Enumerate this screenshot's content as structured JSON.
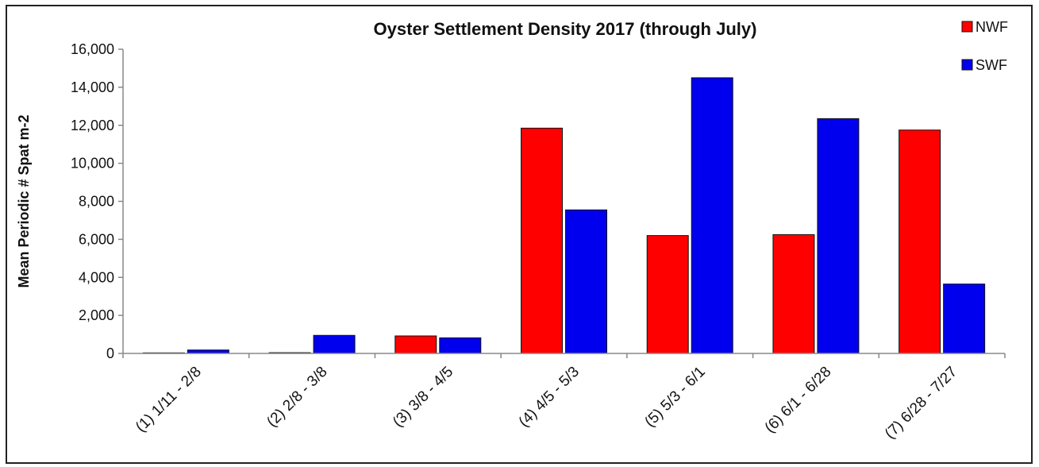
{
  "chart_data": {
    "type": "bar",
    "title": "Oyster Settlement Density 2017 (through July)",
    "xlabel": "",
    "ylabel": "Mean Periodic # Spat m-2",
    "ylim": [
      0,
      16000
    ],
    "yticks": [
      0,
      2000,
      4000,
      6000,
      8000,
      10000,
      12000,
      14000,
      16000
    ],
    "ytick_labels": [
      "0",
      "2,000",
      "4,000",
      "6,000",
      "8,000",
      "10,000",
      "12,000",
      "14,000",
      "16,000"
    ],
    "categories": [
      "(1) 1/11 - 2/8",
      "(2) 2/8 - 3/8",
      "(3) 3/8 - 4/5",
      "(4) 4/5 - 5/3",
      "(5) 5/3 - 6/1",
      "(6) 6/1 - 6/28",
      "(7) 6/28 - 7/27"
    ],
    "series": [
      {
        "name": "NWF",
        "color": "#ff0000",
        "values": [
          30,
          40,
          920,
          11850,
          6200,
          6250,
          11750
        ]
      },
      {
        "name": "SWF",
        "color": "#0000ee",
        "values": [
          180,
          950,
          820,
          7550,
          14500,
          12350,
          3650
        ]
      }
    ],
    "grid": false,
    "legend_position": "top-right"
  }
}
